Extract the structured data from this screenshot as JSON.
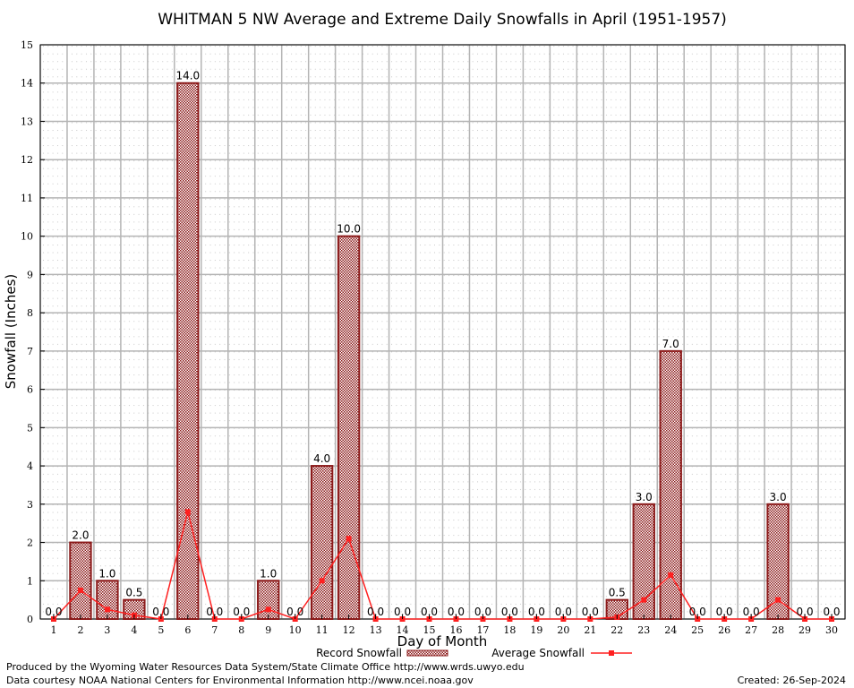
{
  "chart_data": {
    "type": "bar",
    "title": "WHITMAN 5 NW Average and Extreme Daily Snowfalls in April (1951-1957)",
    "xlabel": "Day of Month",
    "ylabel": "Snowfall (Inches)",
    "ylim": [
      0,
      15
    ],
    "yticks": [
      "0",
      "1",
      "2",
      "3",
      "4",
      "5",
      "6",
      "7",
      "8",
      "9",
      "10",
      "11",
      "12",
      "13",
      "14",
      "15"
    ],
    "categories": [
      "1",
      "2",
      "3",
      "4",
      "5",
      "6",
      "7",
      "8",
      "9",
      "10",
      "11",
      "12",
      "13",
      "14",
      "15",
      "16",
      "17",
      "18",
      "19",
      "20",
      "21",
      "22",
      "23",
      "24",
      "25",
      "26",
      "27",
      "28",
      "29",
      "30"
    ],
    "grid": true,
    "legend_position": "bottom-center",
    "series": [
      {
        "name": "Record Snowfall",
        "kind": "bar",
        "color": "#8b1a1a",
        "values": [
          0,
          2,
          1,
          0.5,
          0,
          14,
          0,
          0,
          1,
          0,
          4,
          10,
          0,
          0,
          0,
          0,
          0,
          0,
          0,
          0,
          0,
          0.5,
          3,
          7,
          0,
          0,
          0,
          3,
          0,
          0
        ],
        "labels": [
          "0.0",
          "2.0",
          "1.0",
          "0.5",
          "0.0",
          "14.0",
          "0.0",
          "0.0",
          "1.0",
          "0.0",
          "4.0",
          "10.0",
          "0.0",
          "0.0",
          "0.0",
          "0.0",
          "0.0",
          "0.0",
          "0.0",
          "0.0",
          "0.0",
          "0.5",
          "3.0",
          "7.0",
          "0.0",
          "0.0",
          "0.0",
          "3.0",
          "0.0",
          "0.0"
        ]
      },
      {
        "name": "Average Snowfall",
        "kind": "line",
        "color": "#ff2020",
        "values": [
          0,
          0.75,
          0.25,
          0.1,
          0,
          2.8,
          0,
          0,
          0.25,
          0,
          1,
          2.1,
          0,
          0,
          0,
          0,
          0,
          0,
          0,
          0,
          0,
          0.05,
          0.5,
          1.15,
          0,
          0,
          0,
          0.5,
          0,
          0
        ]
      }
    ]
  },
  "footer": {
    "produced_by": "Produced by the Wyoming Water Resources Data System/State Climate Office http://www.wrds.uwyo.edu",
    "data_courtesy": "Data courtesy NOAA National Centers for Environmental Information http://www.ncei.noaa.gov",
    "created": "Created:  26-Sep-2024"
  }
}
